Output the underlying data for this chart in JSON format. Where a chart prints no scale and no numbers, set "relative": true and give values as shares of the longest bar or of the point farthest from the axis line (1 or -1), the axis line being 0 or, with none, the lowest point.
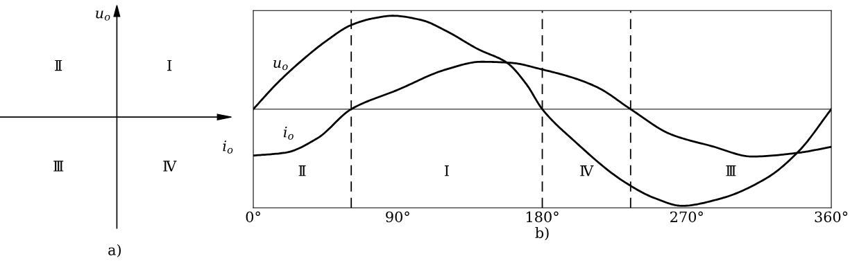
{
  "chart_data": [
    {
      "type": "other",
      "xlabel": "a)",
      "annotations": [
        "Ⅱ",
        "Ⅰ",
        "Ⅲ",
        "Ⅳ",
        "u$_{o}$",
        "i$_{o}$"
      ]
    },
    {
      "type": "line",
      "relative": true,
      "xlabel": "b)",
      "tick_labels": "x",
      "xlim": [
        0,
        360
      ],
      "xticks": [
        {
          "value": 0,
          "label": "0°"
        },
        {
          "value": 90,
          "label": "90°"
        },
        {
          "value": 180,
          "label": "180°"
        },
        {
          "value": 270,
          "label": "270°"
        },
        {
          "value": 360,
          "label": "360°"
        }
      ],
      "series": [
        {
          "name": "u$_{o}$",
          "color": "#000000",
          "x": [
            0,
            15,
            30,
            45,
            61,
            75,
            87,
            105,
            120,
            140,
            158,
            170,
            180,
            200,
            230,
            250,
            267,
            290,
            320,
            340,
            360
          ],
          "values": [
            0,
            0.27,
            0.5,
            0.7,
            0.87,
            0.94,
            0.966,
            0.92,
            0.81,
            0.62,
            0.48,
            0.26,
            0,
            -0.33,
            -0.74,
            -0.92,
            -1,
            -0.93,
            -0.71,
            -0.43,
            0
          ]
        },
        {
          "name": "i$_{o}$",
          "color": "#000000",
          "x": [
            0,
            20,
            40,
            61,
            90,
            120,
            142,
            160,
            180,
            200,
            215,
            235,
            260,
            285,
            311,
            340,
            360
          ],
          "values": [
            -0.48,
            -0.45,
            -0.3,
            0,
            0.2,
            0.41,
            0.49,
            0.48,
            0.41,
            0.32,
            0.22,
            0,
            -0.26,
            -0.38,
            -0.49,
            -0.45,
            -0.39
          ]
        }
      ],
      "ref_lines": [
        {
          "axis": "y",
          "value": 0,
          "line_style": "solid"
        },
        {
          "axis": "x",
          "value": 61,
          "line_style": "dashed"
        },
        {
          "axis": "x",
          "value": 180,
          "line_style": "dashed"
        },
        {
          "axis": "x",
          "value": 235,
          "line_style": "dashed"
        }
      ],
      "annotations": [
        "Ⅱ",
        "Ⅰ",
        "Ⅳ",
        "Ⅲ"
      ]
    }
  ]
}
